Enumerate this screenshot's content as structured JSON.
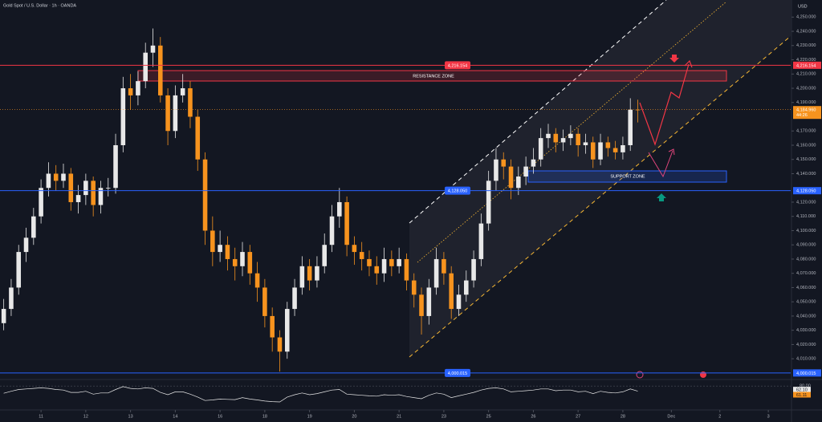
{
  "chart_data": {
    "type": "candlestick",
    "title": "Gold Spot / U.S. Dollar · 1h · OANDA",
    "currency": "USD",
    "open": [
      4035,
      4045,
      4060,
      4085,
      4095,
      4110,
      4130,
      4140,
      4135,
      4140,
      4120,
      4125,
      4135,
      4118,
      4130,
      4130,
      4160,
      4200,
      4195,
      4205,
      4225,
      4230,
      4195,
      4170,
      4195,
      4200,
      4180,
      4150,
      4100,
      4085,
      4090,
      4080,
      4075,
      4085,
      4070,
      4060,
      4040,
      4025,
      4015,
      4045,
      4060,
      4075,
      4065,
      4075,
      4090,
      4110,
      4120,
      4090,
      4085,
      4080,
      4075,
      4070,
      4080,
      4075,
      4080,
      4065,
      4055,
      4040,
      4060,
      4080,
      4070,
      4045,
      4055,
      4065,
      4080,
      4105,
      4135,
      4150,
      4145,
      4130,
      4138,
      4145,
      4150,
      4165,
      4168,
      4162,
      4165,
      4168,
      4160,
      4162,
      4150,
      4162,
      4158,
      4155,
      4160,
      4185
    ],
    "high": [
      4052,
      4066,
      4090,
      4102,
      4116,
      4136,
      4148,
      4146,
      4147,
      4144,
      4132,
      4140,
      4138,
      4135,
      4137,
      4168,
      4208,
      4210,
      4212,
      4232,
      4242,
      4236,
      4200,
      4202,
      4210,
      4205,
      4185,
      4155,
      4110,
      4100,
      4096,
      4088,
      4092,
      4090,
      4078,
      4066,
      4046,
      4030,
      4050,
      4066,
      4082,
      4080,
      4082,
      4098,
      4118,
      4130,
      4124,
      4096,
      4092,
      4086,
      4082,
      4088,
      4086,
      4088,
      4084,
      4070,
      4060,
      4066,
      4088,
      4085,
      4075,
      4062,
      4072,
      4086,
      4112,
      4142,
      4158,
      4155,
      4150,
      4145,
      4152,
      4158,
      4172,
      4175,
      4172,
      4171,
      4174,
      4172,
      4168,
      4166,
      4168,
      4166,
      4163,
      4166,
      4193,
      4192
    ],
    "low": [
      4030,
      4040,
      4055,
      4078,
      4090,
      4105,
      4124,
      4128,
      4130,
      4114,
      4112,
      4118,
      4110,
      4112,
      4124,
      4126,
      4155,
      4185,
      4188,
      4200,
      4215,
      4190,
      4160,
      4165,
      4190,
      4172,
      4142,
      4090,
      4075,
      4078,
      4072,
      4065,
      4068,
      4062,
      4050,
      4032,
      4015,
      4001,
      4010,
      4040,
      4055,
      4058,
      4060,
      4070,
      4085,
      4102,
      4082,
      4076,
      4072,
      4068,
      4062,
      4064,
      4068,
      4070,
      4058,
      4046,
      4027,
      4034,
      4055,
      4062,
      4038,
      4040,
      4050,
      4060,
      4075,
      4100,
      4128,
      4136,
      4122,
      4125,
      4132,
      4140,
      4145,
      4158,
      4155,
      4156,
      4160,
      4152,
      4154,
      4144,
      4146,
      4152,
      4150,
      4150,
      4156,
      4176
    ],
    "close": [
      4045,
      4060,
      4085,
      4095,
      4110,
      4130,
      4140,
      4135,
      4140,
      4120,
      4125,
      4135,
      4118,
      4130,
      4130,
      4160,
      4200,
      4195,
      4205,
      4225,
      4230,
      4195,
      4170,
      4195,
      4200,
      4180,
      4150,
      4100,
      4085,
      4090,
      4080,
      4075,
      4085,
      4070,
      4060,
      4040,
      4025,
      4015,
      4045,
      4060,
      4075,
      4065,
      4075,
      4090,
      4110,
      4120,
      4090,
      4085,
      4080,
      4075,
      4070,
      4080,
      4075,
      4080,
      4065,
      4055,
      4040,
      4060,
      4080,
      4070,
      4045,
      4055,
      4065,
      4080,
      4105,
      4135,
      4150,
      4145,
      4130,
      4138,
      4145,
      4150,
      4165,
      4168,
      4162,
      4165,
      4168,
      4160,
      4162,
      4150,
      4162,
      4158,
      4155,
      4160,
      4185,
      4184.96
    ],
    "up_color": "#e8e8e8",
    "down_color": "#f7931e",
    "xlim": [
      0,
      106
    ],
    "xticks": [
      {
        "value": 5.5,
        "label": "11"
      },
      {
        "value": 11.5,
        "label": "12"
      },
      {
        "value": 17.5,
        "label": "13"
      },
      {
        "value": 23.5,
        "label": "14"
      },
      {
        "value": 29.5,
        "label": "16"
      },
      {
        "value": 35.5,
        "label": "18"
      },
      {
        "value": 41.5,
        "label": "19"
      },
      {
        "value": 47.5,
        "label": "20"
      },
      {
        "value": 53.5,
        "label": "21"
      },
      {
        "value": 59.5,
        "label": "23"
      },
      {
        "value": 65.5,
        "label": "25"
      },
      {
        "value": 71.5,
        "label": "26"
      },
      {
        "value": 77.5,
        "label": "27"
      },
      {
        "value": 83.5,
        "label": "28"
      },
      {
        "value": 90,
        "label": "Dec"
      },
      {
        "value": 96.5,
        "label": "2"
      },
      {
        "value": 103,
        "label": "3"
      }
    ],
    "ylim": [
      3996,
      4262
    ],
    "yticks": [
      {
        "value": 4010,
        "label": "4,010.000"
      },
      {
        "value": 4020,
        "label": "4,020.000"
      },
      {
        "value": 4030,
        "label": "4,030.000"
      },
      {
        "value": 4040,
        "label": "4,040.000"
      },
      {
        "value": 4050,
        "label": "4,050.000"
      },
      {
        "value": 4060,
        "label": "4,060.000"
      },
      {
        "value": 4070,
        "label": "4,070.000"
      },
      {
        "value": 4080,
        "label": "4,080.000"
      },
      {
        "value": 4090,
        "label": "4,090.000"
      },
      {
        "value": 4100,
        "label": "4,100.000"
      },
      {
        "value": 4110,
        "label": "4,110.000"
      },
      {
        "value": 4120,
        "label": "4,120.000"
      },
      {
        "value": 4140,
        "label": "4,140.000"
      },
      {
        "value": 4150,
        "label": "4,150.000"
      },
      {
        "value": 4160,
        "label": "4,160.000"
      },
      {
        "value": 4170,
        "label": "4,170.000"
      },
      {
        "value": 4190,
        "label": "4,190.000"
      },
      {
        "value": 4200,
        "label": "4,200.000"
      },
      {
        "value": 4210,
        "label": "4,210.000"
      },
      {
        "value": 4220,
        "label": "4,220.000"
      },
      {
        "value": 4230,
        "label": "4,230.000"
      },
      {
        "value": 4240,
        "label": "4,240.000"
      },
      {
        "value": 4250,
        "label": "4,250.000"
      }
    ],
    "grid": false,
    "levels": [
      {
        "value": 4216.154,
        "label": "4,216.154",
        "color": "#f23645"
      },
      {
        "value": 4128.05,
        "label": "4,128.050",
        "color": "#2962ff"
      },
      {
        "value": 4000.015,
        "label": "4,000.015",
        "color": "#2962ff"
      }
    ],
    "last_price": {
      "value": 4184.96,
      "label": "4,184.960"
    },
    "countdown": "44:26",
    "annotations": [
      "RESISTANCE ZONE",
      "SUPPORT ZONE"
    ],
    "rsi": [
      55,
      62,
      68,
      70,
      72,
      74,
      72,
      68,
      66,
      58,
      58,
      62,
      52,
      56,
      56,
      68,
      78,
      72,
      70,
      74,
      72,
      58,
      50,
      60,
      60,
      52,
      42,
      30,
      32,
      35,
      34,
      33,
      40,
      35,
      32,
      28,
      26,
      25,
      42,
      50,
      56,
      50,
      54,
      60,
      66,
      68,
      52,
      50,
      48,
      46,
      45,
      50,
      48,
      50,
      44,
      40,
      36,
      48,
      56,
      52,
      40,
      46,
      52,
      58,
      66,
      72,
      74,
      70,
      60,
      62,
      64,
      66,
      70,
      70,
      64,
      66,
      66,
      60,
      62,
      54,
      62,
      58,
      56,
      60,
      70,
      62.1
    ],
    "rsi_color": "#e8e8e8",
    "rsi_lim": [
      0,
      100
    ],
    "rsi_ticks": [
      {
        "value": 80,
        "label": "80.00"
      }
    ],
    "rsi_labels": [
      {
        "value": 62.1,
        "label": "62.10",
        "color": "#e8e8e8"
      },
      {
        "value": 61.11,
        "label": "61.11",
        "color": "#f7931e"
      }
    ]
  }
}
